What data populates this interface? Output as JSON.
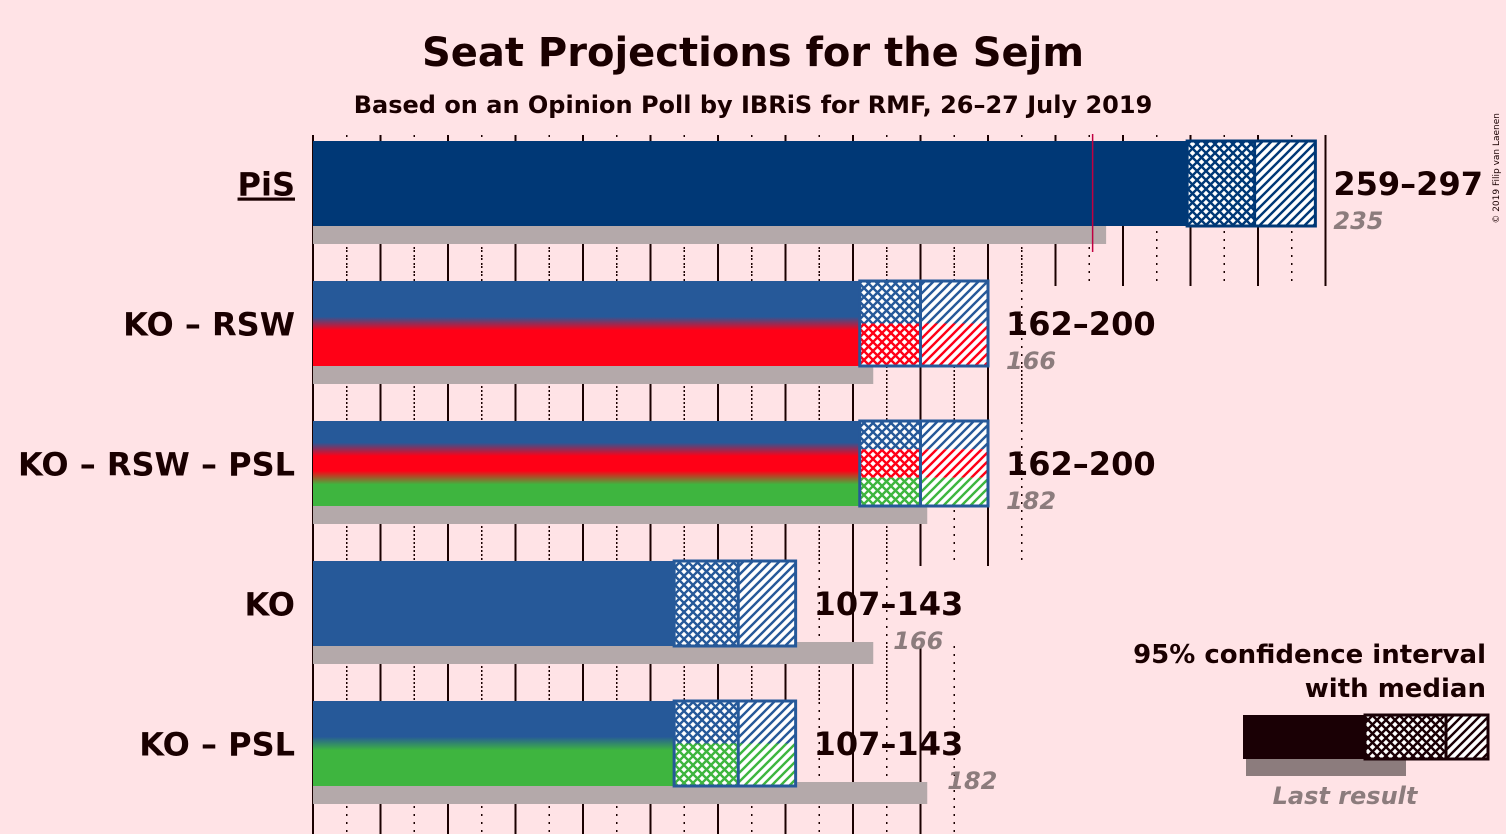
{
  "title": "Seat Projections for the Sejm",
  "subtitle": "Based on an Opinion Poll by IBRiS for RMF, 26–27 July 2019",
  "copyright": "© 2019 Filip van Laenen",
  "legend": {
    "line1": "95% confidence interval",
    "line2": "with median",
    "last_result": "Last result"
  },
  "colors": {
    "background": "#FFE3E6",
    "pis": "#003876",
    "ko": "#265999",
    "rsw": "#FF0016",
    "psl": "#3EB53F",
    "last_result_bar": "#B4A9AA",
    "majority_line": "#C00040"
  },
  "chart_data": {
    "type": "bar",
    "orientation": "horizontal",
    "title": "Seat Projections for the Sejm",
    "subtitle": "Based on an Opinion Poll by IBRiS for RMF, 26–27 July 2019",
    "xlim": [
      0,
      300
    ],
    "tick_step": 10,
    "majority": 231,
    "series": [
      {
        "name": "PiS",
        "low": 259,
        "median": 279,
        "high": 297,
        "last": 235,
        "range_label": "259–297",
        "last_label": "235",
        "underline": true,
        "colors": [
          "#003876"
        ]
      },
      {
        "name": "KO – RSW",
        "low": 162,
        "median": 180,
        "high": 200,
        "last": 166,
        "range_label": "162–200",
        "last_label": "166",
        "underline": false,
        "colors": [
          "#265999",
          "#FF0016"
        ]
      },
      {
        "name": "KO – RSW – PSL",
        "low": 162,
        "median": 180,
        "high": 200,
        "last": 182,
        "range_label": "162–200",
        "last_label": "182",
        "underline": false,
        "colors": [
          "#265999",
          "#FF0016",
          "#3EB53F"
        ]
      },
      {
        "name": "KO",
        "low": 107,
        "median": 126,
        "high": 143,
        "last": 166,
        "range_label": "107–143",
        "last_label": "166",
        "underline": false,
        "colors": [
          "#265999"
        ]
      },
      {
        "name": "KO – PSL",
        "low": 107,
        "median": 126,
        "high": 143,
        "last": 182,
        "range_label": "107–143",
        "last_label": "182",
        "underline": false,
        "colors": [
          "#265999",
          "#3EB53F"
        ]
      }
    ]
  }
}
